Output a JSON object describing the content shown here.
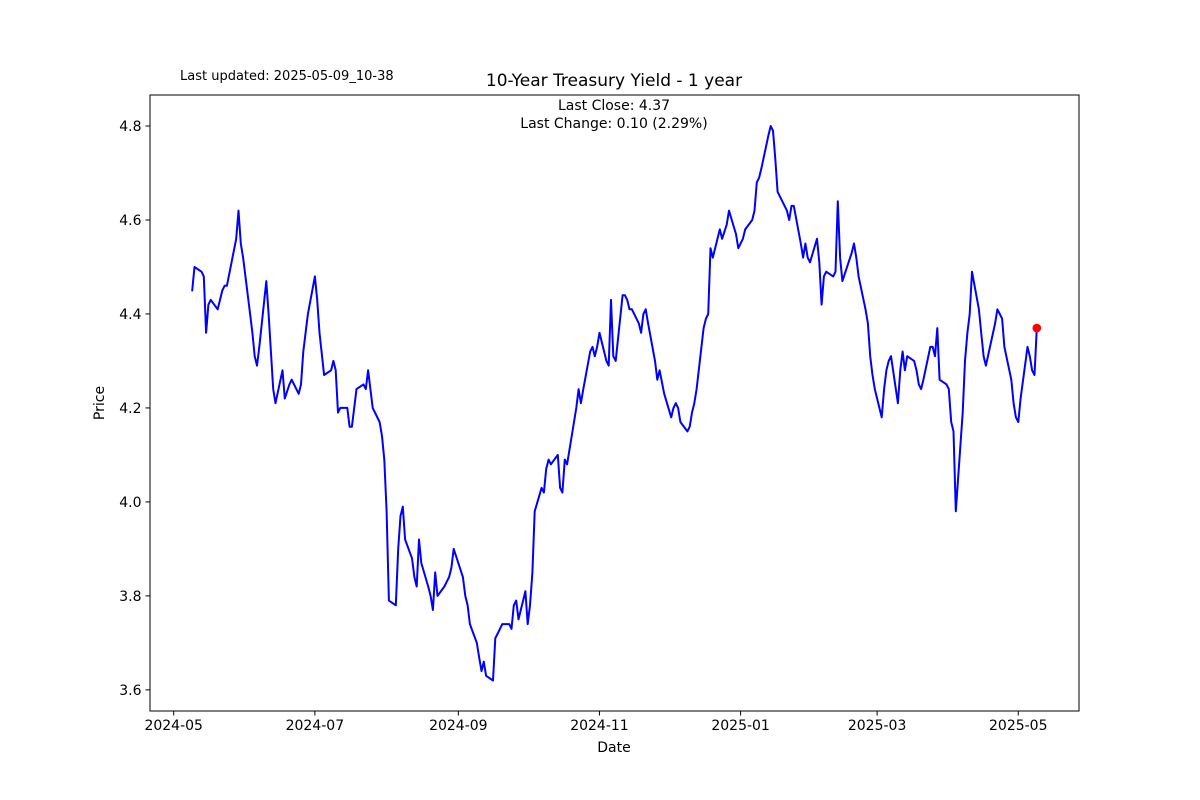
{
  "annotations": {
    "last_updated": "Last updated: 2025-05-09_10-38",
    "last_close_label": "Last Close: 4.37",
    "last_change_label": "Last Change: 0.10 (2.29%)"
  },
  "chart_data": {
    "type": "line",
    "title": "10-Year Treasury Yield - 1 year",
    "xlabel": "Date",
    "ylabel": "Price",
    "legend": "none",
    "grid": false,
    "line_color": "#0000ff",
    "last_point_color": "#ff0000",
    "last_close": 4.37,
    "last_change": 0.1,
    "last_change_pct": "2.29%",
    "x_ticks": [
      "2024-05",
      "2024-07",
      "2024-09",
      "2024-11",
      "2025-01",
      "2025-03",
      "2025-05"
    ],
    "y_ticks": [
      3.6,
      3.8,
      4.0,
      4.2,
      4.4,
      4.6,
      4.8
    ],
    "xlim": [
      "2024-04-20T18:00:00Z",
      "2025-05-27T06:00:00Z"
    ],
    "ylim": [
      3.555,
      4.866
    ],
    "series": [
      {
        "name": "10-Year Treasury Yield",
        "points": [
          [
            "2024-05-09",
            4.45
          ],
          [
            "2024-05-10",
            4.5
          ],
          [
            "2024-05-13",
            4.49
          ],
          [
            "2024-05-14",
            4.48
          ],
          [
            "2024-05-15",
            4.36
          ],
          [
            "2024-05-16",
            4.42
          ],
          [
            "2024-05-17",
            4.43
          ],
          [
            "2024-05-20",
            4.41
          ],
          [
            "2024-05-21",
            4.43
          ],
          [
            "2024-05-22",
            4.45
          ],
          [
            "2024-05-23",
            4.46
          ],
          [
            "2024-05-24",
            4.46
          ],
          [
            "2024-05-28",
            4.56
          ],
          [
            "2024-05-29",
            4.62
          ],
          [
            "2024-05-30",
            4.55
          ],
          [
            "2024-05-31",
            4.52
          ],
          [
            "2024-06-03",
            4.4
          ],
          [
            "2024-06-04",
            4.36
          ],
          [
            "2024-06-05",
            4.31
          ],
          [
            "2024-06-06",
            4.29
          ],
          [
            "2024-06-07",
            4.33
          ],
          [
            "2024-06-10",
            4.47
          ],
          [
            "2024-06-11",
            4.4
          ],
          [
            "2024-06-12",
            4.32
          ],
          [
            "2024-06-13",
            4.24
          ],
          [
            "2024-06-14",
            4.21
          ],
          [
            "2024-06-17",
            4.28
          ],
          [
            "2024-06-18",
            4.22
          ],
          [
            "2024-06-20",
            4.25
          ],
          [
            "2024-06-21",
            4.26
          ],
          [
            "2024-06-24",
            4.23
          ],
          [
            "2024-06-25",
            4.25
          ],
          [
            "2024-06-26",
            4.32
          ],
          [
            "2024-06-27",
            4.36
          ],
          [
            "2024-06-28",
            4.4
          ],
          [
            "2024-07-01",
            4.48
          ],
          [
            "2024-07-02",
            4.43
          ],
          [
            "2024-07-03",
            4.36
          ],
          [
            "2024-07-05",
            4.27
          ],
          [
            "2024-07-08",
            4.28
          ],
          [
            "2024-07-09",
            4.3
          ],
          [
            "2024-07-10",
            4.28
          ],
          [
            "2024-07-11",
            4.19
          ],
          [
            "2024-07-12",
            4.2
          ],
          [
            "2024-07-15",
            4.2
          ],
          [
            "2024-07-16",
            4.16
          ],
          [
            "2024-07-17",
            4.16
          ],
          [
            "2024-07-19",
            4.24
          ],
          [
            "2024-07-22",
            4.25
          ],
          [
            "2024-07-23",
            4.24
          ],
          [
            "2024-07-24",
            4.28
          ],
          [
            "2024-07-25",
            4.24
          ],
          [
            "2024-07-26",
            4.2
          ],
          [
            "2024-07-29",
            4.17
          ],
          [
            "2024-07-30",
            4.14
          ],
          [
            "2024-07-31",
            4.09
          ],
          [
            "2024-08-01",
            3.98
          ],
          [
            "2024-08-02",
            3.79
          ],
          [
            "2024-08-05",
            3.78
          ],
          [
            "2024-08-06",
            3.9
          ],
          [
            "2024-08-07",
            3.97
          ],
          [
            "2024-08-08",
            3.99
          ],
          [
            "2024-08-09",
            3.92
          ],
          [
            "2024-08-12",
            3.88
          ],
          [
            "2024-08-13",
            3.84
          ],
          [
            "2024-08-14",
            3.82
          ],
          [
            "2024-08-15",
            3.92
          ],
          [
            "2024-08-16",
            3.87
          ],
          [
            "2024-08-19",
            3.82
          ],
          [
            "2024-08-20",
            3.8
          ],
          [
            "2024-08-21",
            3.77
          ],
          [
            "2024-08-22",
            3.85
          ],
          [
            "2024-08-23",
            3.8
          ],
          [
            "2024-08-26",
            3.82
          ],
          [
            "2024-08-27",
            3.83
          ],
          [
            "2024-08-28",
            3.84
          ],
          [
            "2024-08-29",
            3.86
          ],
          [
            "2024-08-30",
            3.9
          ],
          [
            "2024-09-03",
            3.84
          ],
          [
            "2024-09-04",
            3.8
          ],
          [
            "2024-09-05",
            3.78
          ],
          [
            "2024-09-06",
            3.74
          ],
          [
            "2024-09-09",
            3.7
          ],
          [
            "2024-09-10",
            3.67
          ],
          [
            "2024-09-11",
            3.64
          ],
          [
            "2024-09-12",
            3.66
          ],
          [
            "2024-09-13",
            3.63
          ],
          [
            "2024-09-16",
            3.62
          ],
          [
            "2024-09-17",
            3.71
          ],
          [
            "2024-09-18",
            3.72
          ],
          [
            "2024-09-19",
            3.73
          ],
          [
            "2024-09-20",
            3.74
          ],
          [
            "2024-09-23",
            3.74
          ],
          [
            "2024-09-24",
            3.73
          ],
          [
            "2024-09-25",
            3.78
          ],
          [
            "2024-09-26",
            3.79
          ],
          [
            "2024-09-27",
            3.75
          ],
          [
            "2024-09-30",
            3.81
          ],
          [
            "2024-10-01",
            3.74
          ],
          [
            "2024-10-02",
            3.78
          ],
          [
            "2024-10-03",
            3.85
          ],
          [
            "2024-10-04",
            3.98
          ],
          [
            "2024-10-07",
            4.03
          ],
          [
            "2024-10-08",
            4.02
          ],
          [
            "2024-10-09",
            4.07
          ],
          [
            "2024-10-10",
            4.09
          ],
          [
            "2024-10-11",
            4.08
          ],
          [
            "2024-10-14",
            4.1
          ],
          [
            "2024-10-15",
            4.03
          ],
          [
            "2024-10-16",
            4.02
          ],
          [
            "2024-10-17",
            4.09
          ],
          [
            "2024-10-18",
            4.08
          ],
          [
            "2024-10-21",
            4.17
          ],
          [
            "2024-10-22",
            4.2
          ],
          [
            "2024-10-23",
            4.24
          ],
          [
            "2024-10-24",
            4.21
          ],
          [
            "2024-10-25",
            4.24
          ],
          [
            "2024-10-28",
            4.32
          ],
          [
            "2024-10-29",
            4.33
          ],
          [
            "2024-10-30",
            4.31
          ],
          [
            "2024-10-31",
            4.33
          ],
          [
            "2024-11-01",
            4.36
          ],
          [
            "2024-11-04",
            4.3
          ],
          [
            "2024-11-05",
            4.29
          ],
          [
            "2024-11-06",
            4.43
          ],
          [
            "2024-11-07",
            4.31
          ],
          [
            "2024-11-08",
            4.3
          ],
          [
            "2024-11-11",
            4.44
          ],
          [
            "2024-11-12",
            4.44
          ],
          [
            "2024-11-13",
            4.43
          ],
          [
            "2024-11-14",
            4.41
          ],
          [
            "2024-11-15",
            4.41
          ],
          [
            "2024-11-18",
            4.38
          ],
          [
            "2024-11-19",
            4.36
          ],
          [
            "2024-11-20",
            4.4
          ],
          [
            "2024-11-21",
            4.41
          ],
          [
            "2024-11-22",
            4.38
          ],
          [
            "2024-11-25",
            4.3
          ],
          [
            "2024-11-26",
            4.26
          ],
          [
            "2024-11-27",
            4.28
          ],
          [
            "2024-11-29",
            4.23
          ],
          [
            "2024-12-02",
            4.18
          ],
          [
            "2024-12-03",
            4.2
          ],
          [
            "2024-12-04",
            4.21
          ],
          [
            "2024-12-05",
            4.2
          ],
          [
            "2024-12-06",
            4.17
          ],
          [
            "2024-12-09",
            4.15
          ],
          [
            "2024-12-10",
            4.16
          ],
          [
            "2024-12-11",
            4.19
          ],
          [
            "2024-12-12",
            4.21
          ],
          [
            "2024-12-13",
            4.24
          ],
          [
            "2024-12-16",
            4.37
          ],
          [
            "2024-12-17",
            4.39
          ],
          [
            "2024-12-18",
            4.4
          ],
          [
            "2024-12-19",
            4.54
          ],
          [
            "2024-12-20",
            4.52
          ],
          [
            "2024-12-23",
            4.58
          ],
          [
            "2024-12-24",
            4.56
          ],
          [
            "2024-12-26",
            4.59
          ],
          [
            "2024-12-27",
            4.62
          ],
          [
            "2024-12-30",
            4.57
          ],
          [
            "2024-12-31",
            4.54
          ],
          [
            "2025-01-02",
            4.56
          ],
          [
            "2025-01-03",
            4.58
          ],
          [
            "2025-01-06",
            4.6
          ],
          [
            "2025-01-07",
            4.62
          ],
          [
            "2025-01-08",
            4.68
          ],
          [
            "2025-01-09",
            4.69
          ],
          [
            "2025-01-10",
            4.71
          ],
          [
            "2025-01-13",
            4.78
          ],
          [
            "2025-01-14",
            4.8
          ],
          [
            "2025-01-15",
            4.79
          ],
          [
            "2025-01-16",
            4.73
          ],
          [
            "2025-01-17",
            4.66
          ],
          [
            "2025-01-21",
            4.62
          ],
          [
            "2025-01-22",
            4.6
          ],
          [
            "2025-01-23",
            4.63
          ],
          [
            "2025-01-24",
            4.63
          ],
          [
            "2025-01-27",
            4.55
          ],
          [
            "2025-01-28",
            4.52
          ],
          [
            "2025-01-29",
            4.55
          ],
          [
            "2025-01-30",
            4.52
          ],
          [
            "2025-01-31",
            4.51
          ],
          [
            "2025-02-03",
            4.56
          ],
          [
            "2025-02-04",
            4.51
          ],
          [
            "2025-02-05",
            4.42
          ],
          [
            "2025-02-06",
            4.48
          ],
          [
            "2025-02-07",
            4.49
          ],
          [
            "2025-02-10",
            4.48
          ],
          [
            "2025-02-11",
            4.49
          ],
          [
            "2025-02-12",
            4.64
          ],
          [
            "2025-02-13",
            4.52
          ],
          [
            "2025-02-14",
            4.47
          ],
          [
            "2025-02-18",
            4.53
          ],
          [
            "2025-02-19",
            4.55
          ],
          [
            "2025-02-20",
            4.52
          ],
          [
            "2025-02-21",
            4.48
          ],
          [
            "2025-02-24",
            4.41
          ],
          [
            "2025-02-25",
            4.38
          ],
          [
            "2025-02-26",
            4.31
          ],
          [
            "2025-02-27",
            4.27
          ],
          [
            "2025-02-28",
            4.24
          ],
          [
            "2025-03-03",
            4.18
          ],
          [
            "2025-03-04",
            4.24
          ],
          [
            "2025-03-05",
            4.28
          ],
          [
            "2025-03-06",
            4.3
          ],
          [
            "2025-03-07",
            4.31
          ],
          [
            "2025-03-10",
            4.21
          ],
          [
            "2025-03-11",
            4.28
          ],
          [
            "2025-03-12",
            4.32
          ],
          [
            "2025-03-13",
            4.28
          ],
          [
            "2025-03-14",
            4.31
          ],
          [
            "2025-03-17",
            4.3
          ],
          [
            "2025-03-18",
            4.28
          ],
          [
            "2025-03-19",
            4.25
          ],
          [
            "2025-03-20",
            4.24
          ],
          [
            "2025-03-21",
            4.26
          ],
          [
            "2025-03-24",
            4.33
          ],
          [
            "2025-03-25",
            4.33
          ],
          [
            "2025-03-26",
            4.31
          ],
          [
            "2025-03-27",
            4.37
          ],
          [
            "2025-03-28",
            4.26
          ],
          [
            "2025-03-31",
            4.25
          ],
          [
            "2025-04-01",
            4.24
          ],
          [
            "2025-04-02",
            4.17
          ],
          [
            "2025-04-03",
            4.15
          ],
          [
            "2025-04-04",
            3.98
          ],
          [
            "2025-04-07",
            4.19
          ],
          [
            "2025-04-08",
            4.3
          ],
          [
            "2025-04-09",
            4.36
          ],
          [
            "2025-04-10",
            4.4
          ],
          [
            "2025-04-11",
            4.49
          ],
          [
            "2025-04-14",
            4.41
          ],
          [
            "2025-04-15",
            4.36
          ],
          [
            "2025-04-16",
            4.31
          ],
          [
            "2025-04-17",
            4.29
          ],
          [
            "2025-04-21",
            4.38
          ],
          [
            "2025-04-22",
            4.41
          ],
          [
            "2025-04-23",
            4.4
          ],
          [
            "2025-04-24",
            4.39
          ],
          [
            "2025-04-25",
            4.33
          ],
          [
            "2025-04-28",
            4.26
          ],
          [
            "2025-04-29",
            4.21
          ],
          [
            "2025-04-30",
            4.18
          ],
          [
            "2025-05-01",
            4.17
          ],
          [
            "2025-05-02",
            4.22
          ],
          [
            "2025-05-05",
            4.33
          ],
          [
            "2025-05-06",
            4.31
          ],
          [
            "2025-05-07",
            4.28
          ],
          [
            "2025-05-08",
            4.27
          ],
          [
            "2025-05-09",
            4.37
          ]
        ]
      }
    ]
  }
}
